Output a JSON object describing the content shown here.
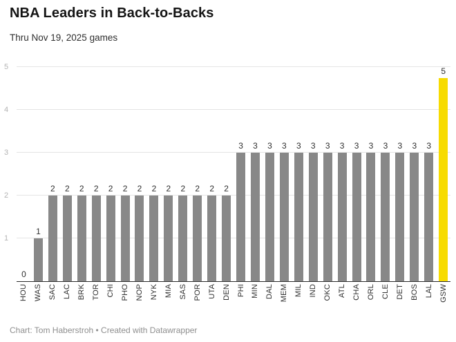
{
  "header": {
    "title": "NBA Leaders in Back-to-Backs",
    "subtitle": "Thru Nov 19, 2025 games"
  },
  "footer": {
    "credit": "Chart: Tom Haberstroh • Created with Datawrapper"
  },
  "chart_data": {
    "type": "bar",
    "title": "NBA Leaders in Back-to-Backs",
    "subtitle": "Thru Nov 19, 2025 games",
    "categories": [
      "HOU",
      "WAS",
      "SAC",
      "LAC",
      "BRK",
      "TOR",
      "CHI",
      "PHO",
      "NOP",
      "NYK",
      "MIA",
      "SAS",
      "POR",
      "UTA",
      "DEN",
      "PHI",
      "MIN",
      "DAL",
      "MEM",
      "MIL",
      "IND",
      "OKC",
      "ATL",
      "CHA",
      "ORL",
      "CLE",
      "DET",
      "BOS",
      "LAL",
      "GSW"
    ],
    "values": [
      0,
      1,
      2,
      2,
      2,
      2,
      2,
      2,
      2,
      2,
      2,
      2,
      2,
      2,
      2,
      3,
      3,
      3,
      3,
      3,
      3,
      3,
      3,
      3,
      3,
      3,
      3,
      3,
      3,
      5
    ],
    "value_labels_shown": true,
    "highlight_category": "GSW",
    "ylim": [
      0,
      5
    ],
    "yticks": [
      1,
      2,
      3,
      4,
      5
    ],
    "grid": true,
    "legend": "none",
    "colors": {
      "bar": "#888888",
      "highlight": "#F7DB00",
      "gridline": "#e4e4e4",
      "baseline": "#2b2b2b",
      "ytick_label": "#b3b3b3",
      "value_label": "#2e2e2e",
      "xtick_label": "#2e2e2e"
    },
    "footer": "Chart: Tom Haberstroh • Created with Datawrapper"
  }
}
